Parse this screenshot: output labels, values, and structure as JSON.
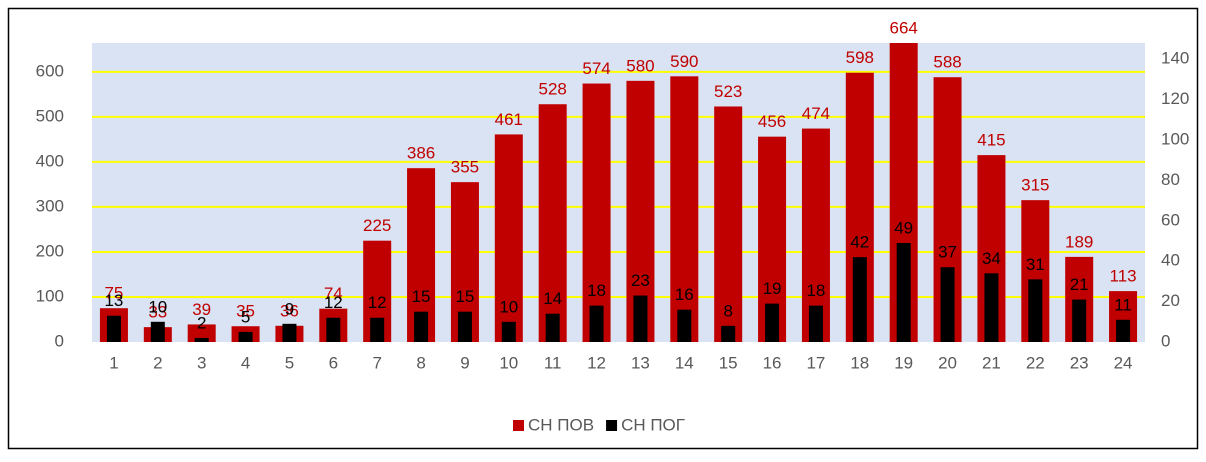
{
  "chart_data": {
    "type": "bar",
    "categories": [
      "1",
      "2",
      "3",
      "4",
      "5",
      "6",
      "7",
      "8",
      "9",
      "10",
      "11",
      "12",
      "13",
      "14",
      "15",
      "16",
      "17",
      "18",
      "19",
      "20",
      "21",
      "22",
      "23",
      "24"
    ],
    "series": [
      {
        "name": "СН ПОВ",
        "color": "#c00000",
        "label_color": "#c00000",
        "values": [
          75,
          33,
          39,
          35,
          36,
          74,
          225,
          386,
          355,
          461,
          528,
          574,
          580,
          590,
          523,
          456,
          474,
          598,
          664,
          588,
          415,
          315,
          189,
          113
        ]
      },
      {
        "name": "СН ПОГ",
        "color": "#000000",
        "label_color": "#000000",
        "axis": "y2",
        "values": [
          13,
          10,
          2,
          5,
          9,
          12,
          12,
          15,
          15,
          10,
          14,
          18,
          23,
          16,
          8,
          19,
          18,
          42,
          49,
          37,
          34,
          31,
          21,
          11
        ]
      }
    ],
    "ylim": [
      0,
      664
    ],
    "yticks": [
      0,
      100,
      200,
      300,
      400,
      500,
      600
    ],
    "y2lim": [
      0,
      148
    ],
    "y2ticks": [
      0,
      20,
      40,
      60,
      80,
      100,
      120,
      140
    ],
    "grid": true,
    "grid_color": "#ffff00",
    "plot_background": "#dae3f3",
    "legend": "bottom"
  }
}
